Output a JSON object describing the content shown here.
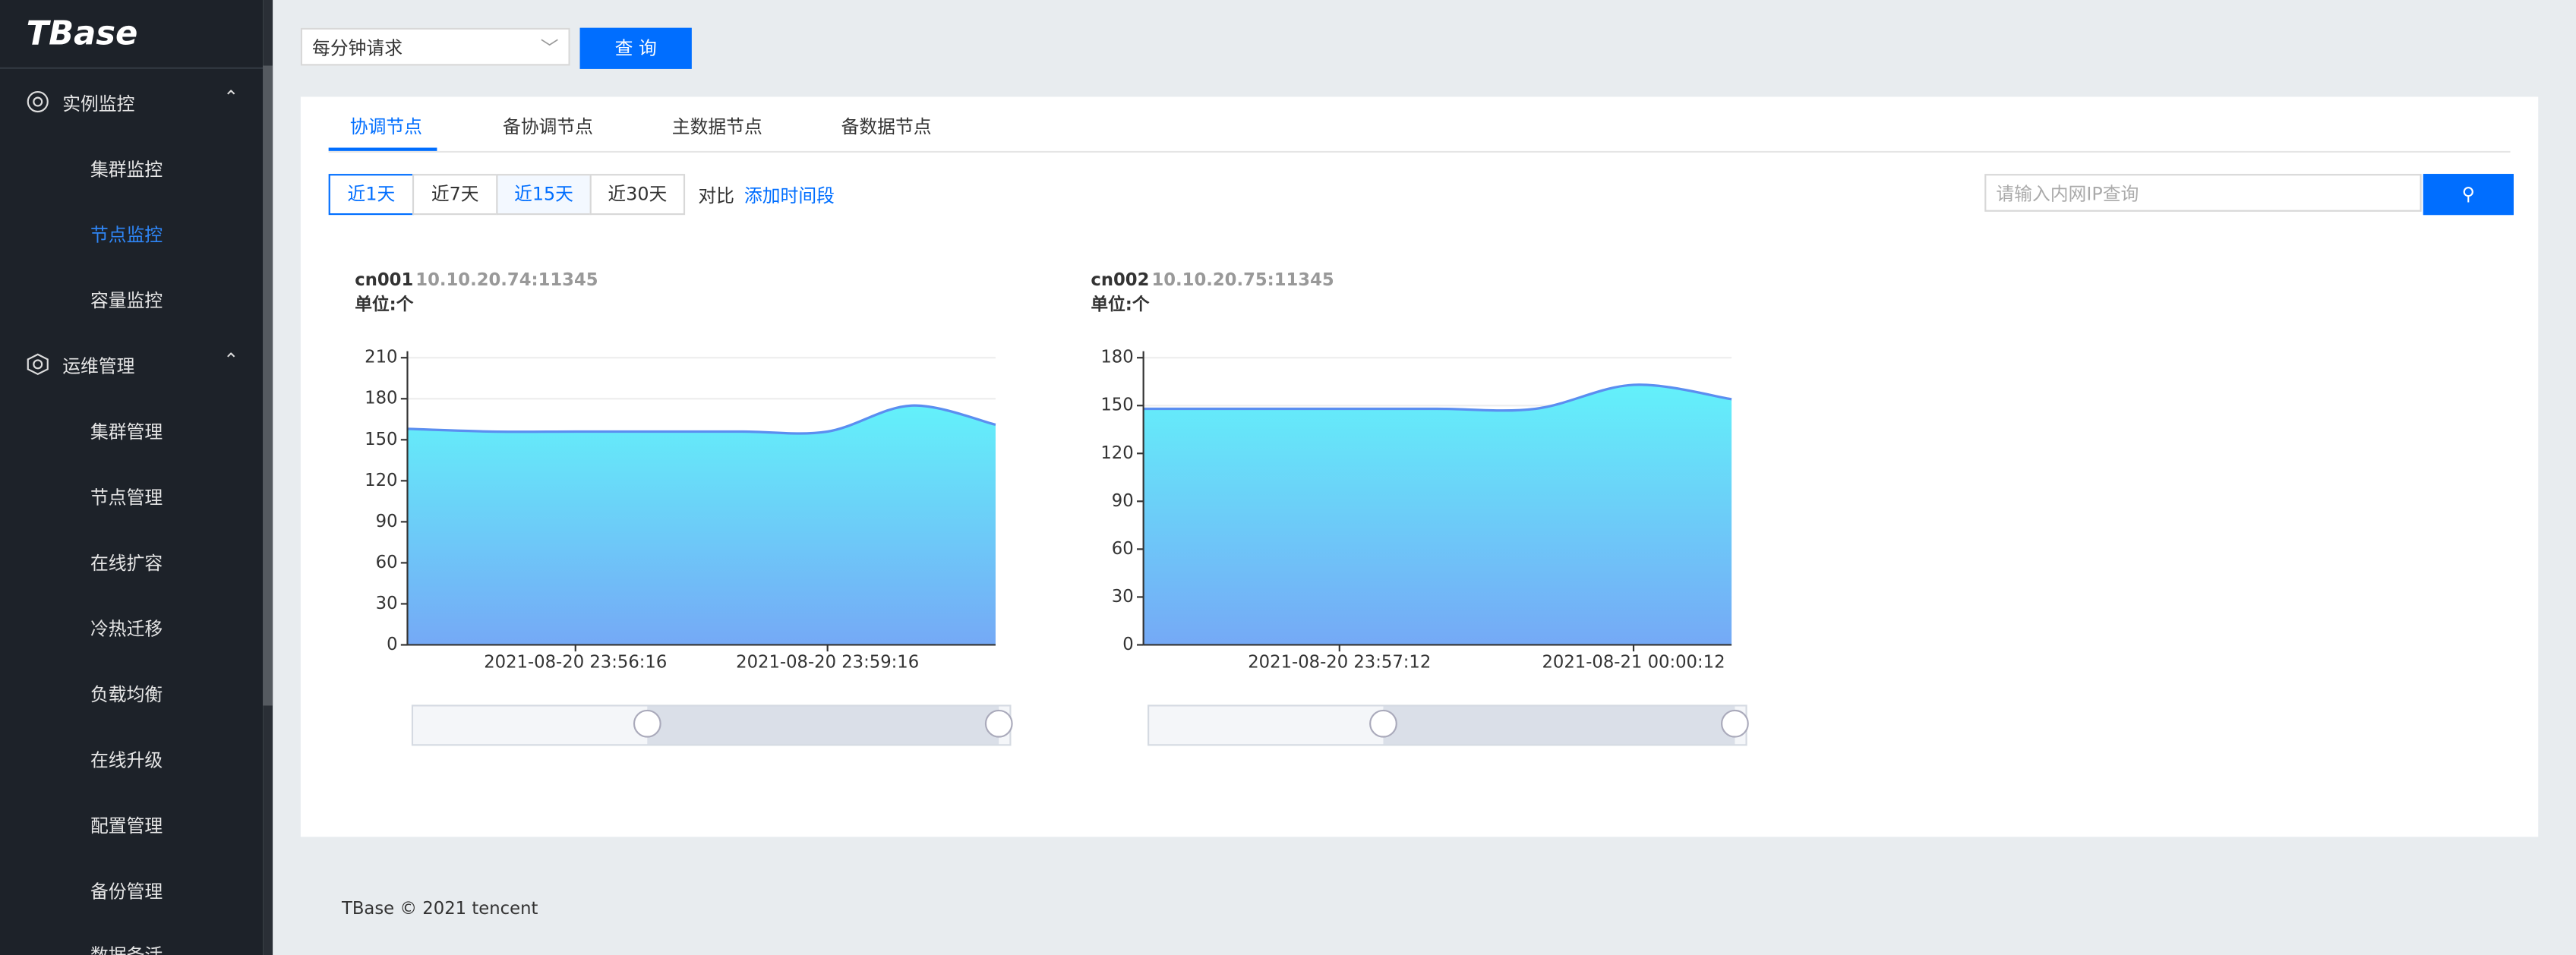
{
  "sidebar": {
    "logo": "TBase",
    "groups": [
      {
        "label": "实例监控",
        "items": [
          "集群监控",
          "节点监控",
          "容量监控"
        ]
      },
      {
        "label": "运维管理",
        "items": [
          "集群管理",
          "节点管理",
          "在线扩容",
          "冷热迁移",
          "负载均衡",
          "在线升级",
          "配置管理",
          "备份管理",
          "数据备活"
        ]
      }
    ]
  },
  "toolbar": {
    "select": "每分钟请求",
    "button": "查 询"
  },
  "tabs": [
    "协调节点",
    "备协调节点",
    "主数据节点",
    "备数据节点"
  ],
  "time_buttons": [
    "近1天",
    "近7天",
    "近15天",
    "近30天"
  ],
  "compare": "对比",
  "add_period": "添加时间段",
  "search_placeholder": "请输入内网IP查询",
  "footer": "TBase © 2021 tencent",
  "chart_data": [
    {
      "type": "area",
      "title": "cn001",
      "subtitle": "10.10.20.74:11345",
      "unit_label": "单位:个",
      "color": "#5b8ef0",
      "x": [
        null,
        null,
        "2021-08-20 23:56:16",
        null,
        null,
        "2021-08-20 23:59:16",
        null,
        null
      ],
      "values": [
        158,
        156,
        156,
        156,
        156,
        156,
        175,
        161
      ],
      "ylim": [
        0,
        210
      ],
      "yticks": [
        0,
        30,
        60,
        90,
        120,
        150,
        180,
        210
      ],
      "grid": true
    },
    {
      "type": "area",
      "title": "cn002",
      "subtitle": "10.10.20.75:11345",
      "unit_label": "单位:个",
      "color": "#5b8ef0",
      "x": [
        null,
        null,
        "2021-08-20 23:57:12",
        null,
        null,
        "2021-08-21 00:00:12",
        null
      ],
      "values": [
        148,
        148,
        148,
        148,
        148,
        163,
        154
      ],
      "ylim": [
        0,
        180
      ],
      "yticks": [
        0,
        30,
        60,
        90,
        120,
        150,
        180
      ],
      "grid": true
    }
  ]
}
